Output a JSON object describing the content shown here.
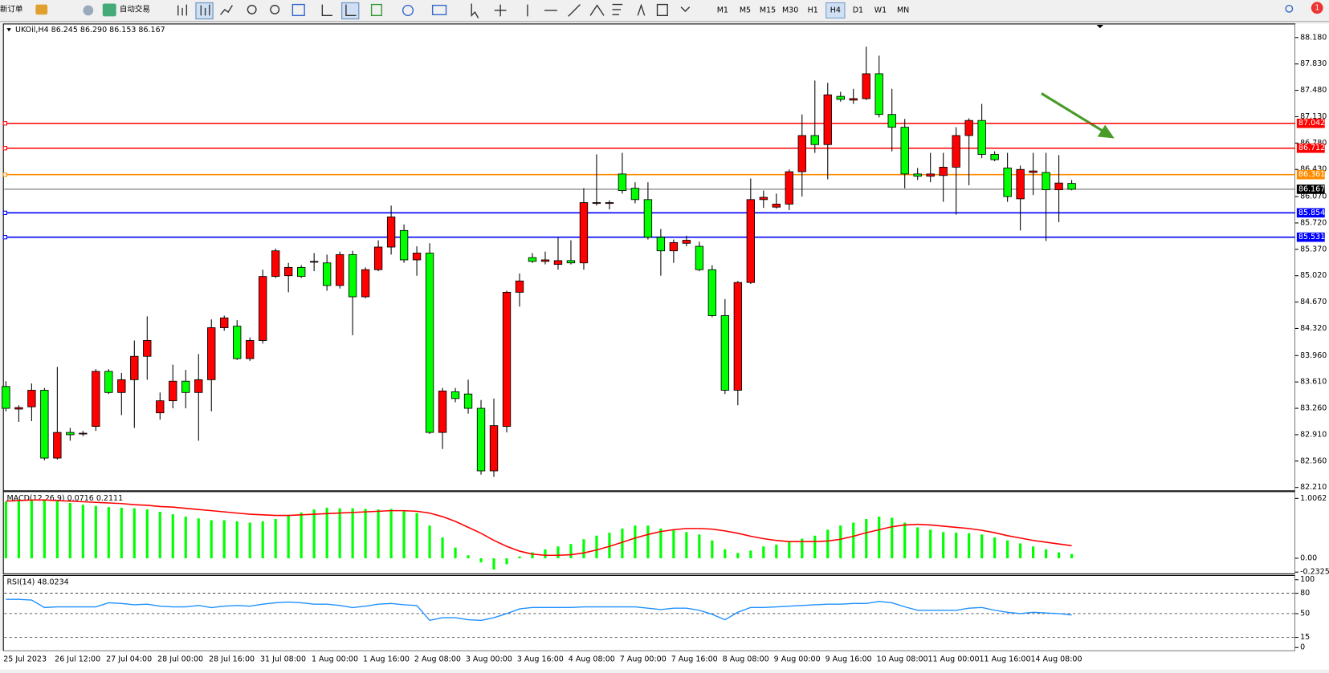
{
  "toolbar": {
    "new_order": "新订单",
    "auto_trading": "自动交易",
    "timeframes": [
      "M1",
      "M5",
      "M15",
      "M30",
      "H1",
      "H4",
      "D1",
      "W1",
      "MN"
    ],
    "notifications": 1
  },
  "chart_data": [
    {
      "type": "candlestick",
      "title": "UKOil,H4  86.245 86.290 86.153 86.167",
      "categories": [
        "25 Jul 2023",
        null,
        null,
        null,
        "26 Jul 12:00",
        null,
        null,
        null,
        "27 Jul 04:00",
        null,
        null,
        null,
        "28 Jul 00:00",
        null,
        null,
        null,
        "28 Jul 16:00",
        null,
        null,
        null,
        "31 Jul 08:00",
        null,
        null,
        null,
        "1 Aug 00:00",
        null,
        null,
        null,
        "1 Aug 16:00",
        null,
        null,
        null,
        "2 Aug 08:00",
        null,
        null,
        null,
        "3 Aug 00:00",
        null,
        null,
        null,
        "3 Aug 16:00",
        null,
        null,
        null,
        "4 Aug 08:00",
        null,
        null,
        null,
        "7 Aug 00:00",
        null,
        null,
        null,
        "7 Aug 16:00",
        null,
        null,
        null,
        "8 Aug 08:00",
        null,
        null,
        null,
        "9 Aug 00:00",
        null,
        null,
        null,
        "9 Aug 16:00",
        null,
        null,
        null,
        "10 Aug 08:00",
        null,
        null,
        null,
        "11 Aug 00:00",
        null,
        null,
        null,
        "11 Aug 16:00",
        null,
        null,
        null,
        "14 Aug 08:00",
        null,
        null,
        null
      ],
      "open": [
        83.55,
        83.25,
        83.28,
        83.5,
        82.6,
        82.94,
        82.92,
        83.02,
        83.75,
        83.47,
        83.64,
        83.95,
        83.2,
        83.36,
        83.62,
        83.47,
        83.64,
        84.33,
        84.35,
        83.92,
        84.16,
        85.01,
        85.02,
        85.13,
        85.21,
        85.19,
        84.89,
        85.3,
        84.74,
        85.1,
        85.4,
        85.62,
        85.23,
        85.32,
        82.94,
        83.48,
        83.45,
        83.26,
        82.43,
        83.02,
        84.8,
        85.26,
        85.21,
        85.17,
        85.22,
        85.19,
        85.98,
        85.99,
        86.37,
        86.18,
        86.03,
        85.53,
        85.35,
        85.45,
        85.41,
        85.1,
        84.49,
        83.5,
        84.93,
        86.03,
        85.93,
        85.97,
        86.4,
        86.88,
        86.76,
        87.4,
        87.35,
        87.37,
        87.7,
        87.16,
        86.99,
        86.37,
        86.34,
        86.35,
        86.46,
        86.88,
        87.08,
        86.63,
        86.45,
        86.04,
        86.39,
        86.39,
        86.16,
        86.245
      ],
      "high": [
        83.62,
        83.3,
        83.59,
        83.53,
        83.81,
        83.0,
        82.96,
        83.78,
        83.78,
        83.73,
        84.16,
        84.48,
        83.47,
        83.84,
        83.77,
        83.98,
        84.44,
        84.49,
        84.43,
        84.2,
        85.1,
        85.38,
        85.19,
        85.16,
        85.32,
        85.3,
        85.34,
        85.35,
        85.13,
        85.49,
        85.95,
        85.7,
        85.41,
        85.45,
        83.53,
        83.53,
        83.64,
        83.37,
        83.39,
        84.82,
        85.05,
        85.32,
        85.34,
        85.53,
        85.49,
        86.18,
        86.63,
        86.02,
        86.65,
        86.26,
        86.26,
        85.64,
        85.5,
        85.55,
        85.47,
        85.16,
        84.71,
        84.95,
        86.31,
        86.15,
        86.11,
        86.43,
        87.16,
        87.61,
        87.58,
        87.46,
        87.5,
        88.06,
        87.94,
        87.5,
        87.1,
        86.45,
        86.65,
        86.65,
        86.99,
        87.11,
        87.3,
        86.67,
        86.65,
        86.48,
        86.65,
        86.65,
        86.62,
        86.29
      ],
      "low": [
        83.22,
        83.08,
        83.09,
        82.57,
        82.58,
        82.83,
        82.89,
        82.96,
        83.45,
        83.17,
        83.0,
        83.64,
        83.11,
        83.26,
        83.26,
        82.83,
        83.22,
        84.29,
        83.9,
        83.89,
        84.12,
        84.99,
        84.8,
        84.99,
        85.08,
        84.82,
        84.85,
        84.23,
        84.72,
        85.08,
        85.3,
        85.19,
        85.02,
        82.92,
        82.72,
        83.34,
        83.19,
        82.38,
        82.35,
        82.94,
        84.61,
        85.19,
        85.17,
        85.1,
        85.17,
        85.1,
        85.95,
        85.9,
        86.11,
        85.98,
        85.5,
        85.02,
        85.19,
        85.41,
        85.08,
        84.47,
        83.45,
        83.3,
        84.91,
        85.92,
        85.91,
        85.89,
        86.07,
        86.65,
        86.3,
        87.33,
        87.3,
        87.35,
        87.12,
        86.67,
        86.18,
        86.29,
        86.26,
        86.0,
        85.83,
        86.22,
        86.58,
        86.54,
        86.0,
        85.62,
        86.09,
        85.48,
        85.73,
        86.153
      ],
      "close": [
        83.26,
        83.27,
        83.5,
        82.6,
        82.94,
        82.91,
        82.93,
        83.75,
        83.47,
        83.64,
        83.95,
        84.16,
        83.36,
        83.62,
        83.47,
        83.64,
        84.33,
        84.46,
        83.92,
        84.16,
        85.01,
        85.35,
        85.13,
        85.01,
        85.21,
        84.89,
        85.3,
        84.74,
        85.1,
        85.4,
        85.8,
        85.23,
        85.32,
        82.94,
        83.49,
        83.39,
        83.26,
        82.43,
        83.03,
        84.8,
        84.95,
        85.21,
        85.23,
        85.22,
        85.19,
        85.99,
        85.99,
        85.99,
        86.15,
        86.03,
        85.53,
        85.35,
        85.46,
        85.49,
        85.1,
        84.49,
        83.5,
        84.93,
        86.03,
        86.06,
        85.97,
        86.4,
        86.88,
        86.76,
        87.42,
        87.36,
        87.37,
        87.7,
        87.16,
        86.99,
        86.37,
        86.34,
        86.37,
        86.46,
        86.88,
        87.08,
        86.63,
        86.56,
        86.07,
        86.43,
        86.41,
        86.16,
        86.25,
        86.167
      ],
      "up_color": "#ff0000",
      "down_color": "#00ff00",
      "ylim": [
        82.177,
        88.338
      ],
      "yticks": [
        {
          "value": 88.18,
          "label": "88.180"
        },
        {
          "value": 87.83,
          "label": "87.830"
        },
        {
          "value": 87.48,
          "label": "87.480"
        },
        {
          "value": 87.13,
          "label": "87.130"
        },
        {
          "value": 86.78,
          "label": "86.780"
        },
        {
          "value": 86.43,
          "label": "86.430"
        },
        {
          "value": 86.07,
          "label": "86.070"
        },
        {
          "value": 85.72,
          "label": "85.720"
        },
        {
          "value": 85.37,
          "label": "85.370"
        },
        {
          "value": 85.02,
          "label": "85.020"
        },
        {
          "value": 84.67,
          "label": "84.670"
        },
        {
          "value": 84.32,
          "label": "84.320"
        },
        {
          "value": 83.96,
          "label": "83.960"
        },
        {
          "value": 83.61,
          "label": "83.610"
        },
        {
          "value": 83.26,
          "label": "83.260"
        },
        {
          "value": 82.91,
          "label": "82.910"
        },
        {
          "value": 82.56,
          "label": "82.560"
        },
        {
          "value": 82.21,
          "label": "82.210"
        }
      ],
      "levels": [
        {
          "value": 87.042,
          "color": "#ff0000"
        },
        {
          "value": 86.712,
          "color": "#ff0000"
        },
        {
          "value": 86.361,
          "color": "#ff8c00"
        },
        {
          "value": 86.167,
          "color": "#000000"
        },
        {
          "value": 85.854,
          "color": "#0000ff"
        },
        {
          "value": 85.531,
          "color": "#0000ff"
        }
      ]
    },
    {
      "type": "macd",
      "title": "MACD(12,26,9) 0.0716 0.2111",
      "values": [
        0.95,
        0.98,
        0.98,
        0.97,
        0.96,
        0.93,
        0.9,
        0.88,
        0.86,
        0.85,
        0.84,
        0.82,
        0.78,
        0.74,
        0.7,
        0.67,
        0.64,
        0.64,
        0.62,
        0.6,
        0.62,
        0.66,
        0.73,
        0.77,
        0.82,
        0.85,
        0.84,
        0.84,
        0.83,
        0.82,
        0.83,
        0.8,
        0.76,
        0.55,
        0.35,
        0.18,
        0.05,
        -0.07,
        -0.19,
        -0.1,
        0.03,
        0.1,
        0.15,
        0.2,
        0.24,
        0.32,
        0.38,
        0.43,
        0.5,
        0.55,
        0.55,
        0.5,
        0.47,
        0.44,
        0.4,
        0.3,
        0.15,
        0.09,
        0.13,
        0.2,
        0.23,
        0.27,
        0.33,
        0.38,
        0.48,
        0.55,
        0.6,
        0.66,
        0.7,
        0.68,
        0.6,
        0.52,
        0.48,
        0.44,
        0.43,
        0.42,
        0.4,
        0.35,
        0.3,
        0.25,
        0.2,
        0.15,
        0.1,
        0.0716
      ],
      "signal": [
        0.96,
        0.97,
        0.98,
        0.98,
        0.97,
        0.96,
        0.95,
        0.94,
        0.93,
        0.92,
        0.9,
        0.89,
        0.87,
        0.86,
        0.84,
        0.82,
        0.8,
        0.78,
        0.76,
        0.74,
        0.73,
        0.72,
        0.72,
        0.73,
        0.74,
        0.75,
        0.76,
        0.77,
        0.78,
        0.79,
        0.8,
        0.8,
        0.79,
        0.76,
        0.7,
        0.62,
        0.52,
        0.42,
        0.3,
        0.2,
        0.12,
        0.07,
        0.05,
        0.05,
        0.06,
        0.09,
        0.14,
        0.2,
        0.27,
        0.34,
        0.4,
        0.45,
        0.48,
        0.5,
        0.5,
        0.49,
        0.46,
        0.42,
        0.37,
        0.33,
        0.3,
        0.28,
        0.28,
        0.28,
        0.29,
        0.32,
        0.37,
        0.43,
        0.48,
        0.53,
        0.56,
        0.57,
        0.56,
        0.54,
        0.52,
        0.5,
        0.47,
        0.43,
        0.38,
        0.34,
        0.3,
        0.27,
        0.24,
        0.2111
      ],
      "color": "#00ff00",
      "signal_color": "#ff0000",
      "ylim": [
        -0.2325,
        1.0062
      ],
      "yticks": [
        1.0062,
        {
          "value": 0,
          "label": "0.00"
        },
        -0.2325
      ]
    },
    {
      "type": "line",
      "title": "RSI(14) 48.0234",
      "values": [
        71,
        71,
        70,
        59,
        60,
        60,
        60,
        60,
        66,
        65,
        63,
        64,
        61,
        60,
        60,
        62,
        59,
        61,
        62,
        61,
        64,
        66,
        67,
        66,
        64,
        64,
        62,
        59,
        61,
        64,
        65,
        63,
        62,
        40,
        44,
        44,
        41,
        40,
        44,
        50,
        57,
        59,
        59,
        59,
        59,
        60,
        60,
        60,
        60,
        60,
        58,
        56,
        58,
        58,
        55,
        49,
        41,
        52,
        59,
        59,
        60,
        61,
        62,
        63,
        64,
        64,
        65,
        65,
        68,
        66,
        60,
        55,
        55,
        55,
        55,
        58,
        59,
        55,
        52,
        50,
        52,
        51,
        50,
        48.0234
      ],
      "color": "#1e90ff",
      "ylim": [
        0,
        100
      ],
      "yticks": [
        100,
        80,
        50,
        15,
        0
      ],
      "levels": [
        80,
        50,
        15
      ]
    }
  ]
}
